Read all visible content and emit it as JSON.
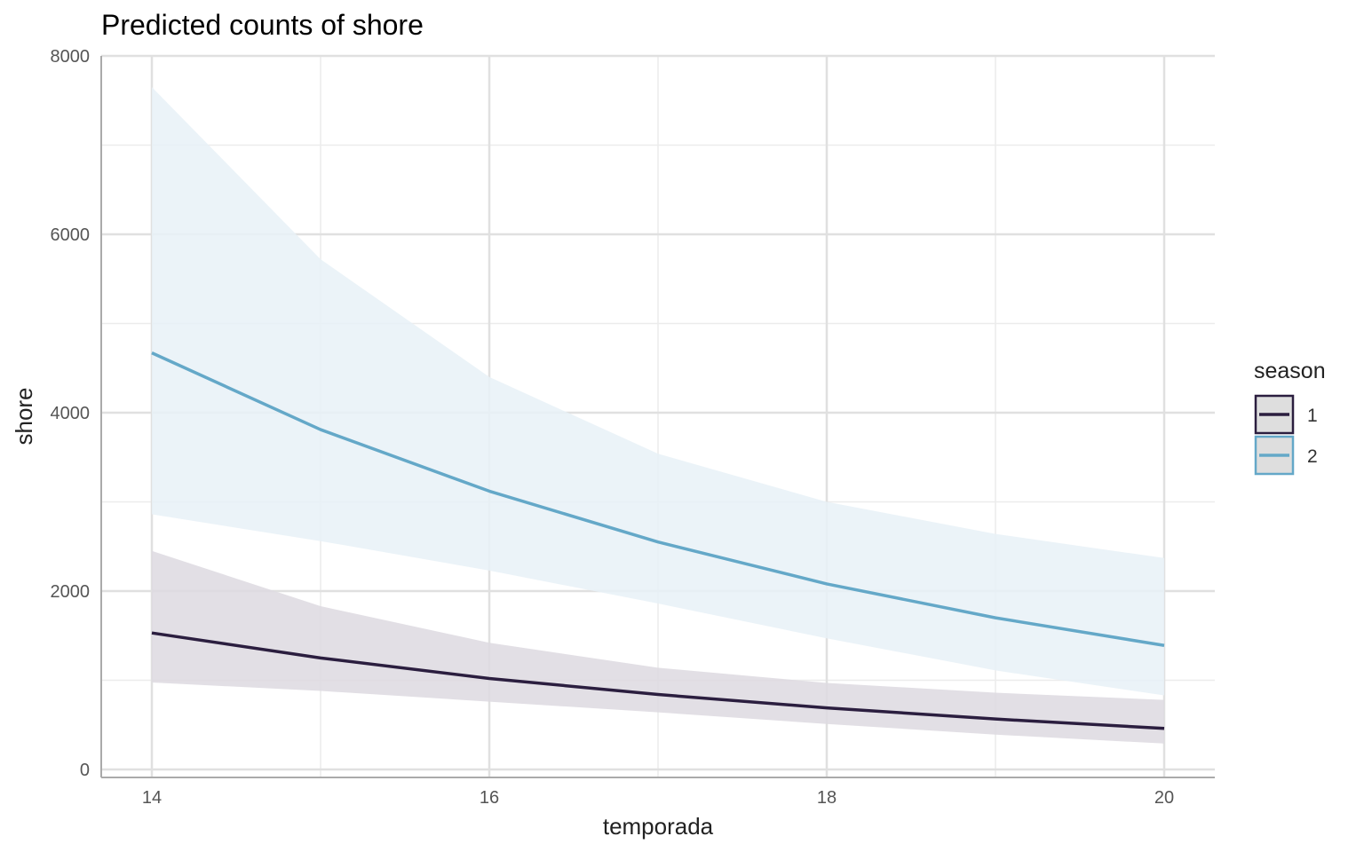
{
  "chart_data": {
    "type": "line",
    "title": "Predicted counts of shore",
    "xlabel": "temporada",
    "ylabel": "shore",
    "xlim": [
      13.7,
      20.3
    ],
    "ylim": [
      -90,
      8000
    ],
    "x_ticks": [
      14,
      16,
      18,
      20
    ],
    "y_ticks": [
      0,
      2000,
      4000,
      6000,
      8000
    ],
    "x_tick_labels": [
      "14",
      "16",
      "18",
      "20"
    ],
    "y_tick_labels": [
      "0",
      "2000",
      "4000",
      "6000",
      "8000"
    ],
    "grid": true,
    "legend": {
      "title": "season",
      "position": "right"
    },
    "x": [
      14,
      15,
      16,
      17,
      18,
      19,
      20
    ],
    "series": [
      {
        "name": "1",
        "color": "#2b1e3f",
        "band_color": "#ddd9e0",
        "values": [
          1530,
          1250,
          1020,
          840,
          690,
          565,
          460
        ],
        "lower": [
          975,
          880,
          760,
          640,
          510,
          390,
          290
        ],
        "upper": [
          2450,
          1830,
          1420,
          1140,
          970,
          860,
          780
        ]
      },
      {
        "name": "2",
        "color": "#64a8c8",
        "band_color": "#e7f1f7",
        "values": [
          4670,
          3810,
          3120,
          2550,
          2080,
          1700,
          1390
        ],
        "lower": [
          2860,
          2560,
          2230,
          1860,
          1470,
          1110,
          830
        ],
        "upper": [
          7650,
          5720,
          4400,
          3540,
          3000,
          2640,
          2370
        ]
      }
    ]
  }
}
